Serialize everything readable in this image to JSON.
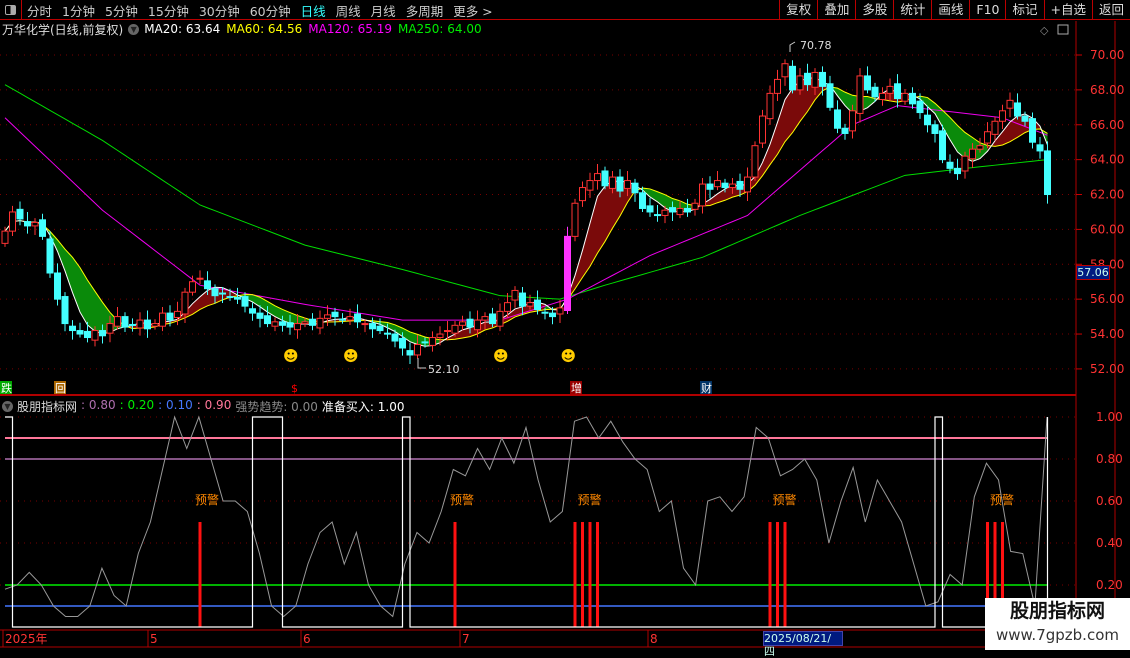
{
  "toolbar": {
    "periods": [
      "分时",
      "1分钟",
      "5分钟",
      "15分钟",
      "30分钟",
      "60分钟",
      "日线",
      "周线",
      "月线",
      "多周期",
      "更多 >"
    ],
    "active": "日线",
    "tools": [
      "复权",
      "叠加",
      "多股",
      "统计",
      "画线",
      "F10",
      "标记",
      "+自选",
      "返回"
    ]
  },
  "info": {
    "title": "万华化学(日线,前复权)",
    "ma": [
      {
        "label": "MA20: 63.64",
        "color": "#ffffff"
      },
      {
        "label": "MA60: 64.56",
        "color": "#ffff00"
      },
      {
        "label": "MA120: 65.19",
        "color": "#ff00ff"
      },
      {
        "label": "MA250: 64.00",
        "color": "#00ee00"
      }
    ]
  },
  "price_axis": {
    "ticks": [
      "70.00",
      "68.00",
      "66.00",
      "64.00",
      "62.00",
      "60.00",
      "58.00",
      "56.00",
      "54.00",
      "52.00"
    ],
    "current": "57.06"
  },
  "annotations": {
    "high": "70.78",
    "low": "52.10"
  },
  "signals": [
    "跌",
    "回",
    "$",
    "增",
    "财"
  ],
  "indicator": {
    "name": "股朋指标网",
    "values": [
      {
        "label": ": 0.80",
        "color": "#b070b0"
      },
      {
        "label": ": 0.20",
        "color": "#00ee00"
      },
      {
        "label": ": 0.10",
        "color": "#4477ff"
      },
      {
        "label": ": 0.90",
        "color": "#ff7799"
      },
      {
        "label": "强势趋势: 0.00",
        "color": "#888888"
      },
      {
        "label": "准备买入: 1.00",
        "color": "#ffffff"
      }
    ],
    "ticks": [
      "1.00",
      "0.80",
      "0.60",
      "0.40",
      "0.20"
    ],
    "warning_label": "预警"
  },
  "time_axis": {
    "labels": [
      "2025年",
      "5",
      "6",
      "7",
      "8"
    ],
    "cursor": "2025/08/21/四"
  },
  "logo": {
    "line1": "股朋指标网",
    "line2": "www.7gpzb.com"
  },
  "chart_data": {
    "type": "candlestick",
    "closes": [
      59.9,
      61,
      60.6,
      60.2,
      60.4,
      59.6,
      57.5,
      56,
      54.6,
      54.2,
      54,
      53.8,
      54.2,
      53.9,
      54.6,
      55,
      54.4,
      54.5,
      54.8,
      54.3,
      54.6,
      55.2,
      54.8,
      55.3,
      56.4,
      57,
      57.2,
      56.6,
      56.2,
      56.3,
      56.1,
      56,
      55.6,
      55.2,
      54.9,
      54.6,
      54.7,
      54.5,
      54.4,
      54.6,
      54.7,
      54.5,
      54.9,
      55.1,
      55,
      54.8,
      55,
      54.7,
      54.6,
      54.3,
      54.2,
      54,
      53.6,
      53.2,
      52.8,
      53.4,
      53.5,
      53.8,
      54,
      54.2,
      54.5,
      54.7,
      54.4,
      54.8,
      55,
      54.6,
      55.3,
      55.8,
      56.5,
      55.6,
      55.8,
      55.4,
      55.2,
      55,
      55.5,
      59.6,
      61.5,
      62.4,
      62.8,
      63.2,
      62.5,
      63,
      62.2,
      62.8,
      62.1,
      61.2,
      61,
      60.8,
      61.1,
      61,
      61.2,
      61,
      61.5,
      62.6,
      62.3,
      62.8,
      62.4,
      62.6,
      62.3,
      63,
      64.8,
      66.5,
      67.8,
      68.6,
      69.5,
      68,
      68.8,
      68.3,
      69,
      68.2,
      67,
      65.8,
      65.5,
      66.8,
      68.8,
      68,
      67.6,
      67.8,
      68.2,
      67.5,
      67.8,
      67.2,
      66.7,
      66,
      65.5,
      64,
      63.5,
      63.2,
      64.2,
      64.6,
      64.8,
      65.6,
      66.2,
      66.8,
      67.4,
      66.5,
      66.2,
      65,
      64.5,
      62
    ],
    "ma250": [
      [
        0,
        68.3
      ],
      [
        13,
        65.1
      ],
      [
        26,
        61.4
      ],
      [
        40,
        59.1
      ],
      [
        53,
        57.7
      ],
      [
        66,
        56.2
      ],
      [
        74,
        56
      ],
      [
        80,
        56.8
      ],
      [
        93,
        58.4
      ],
      [
        106,
        60.8
      ],
      [
        120,
        63.1
      ],
      [
        128,
        63.5
      ],
      [
        139,
        64
      ]
    ],
    "ma120": [
      [
        0,
        66.4
      ],
      [
        13,
        61.1
      ],
      [
        26,
        56.8
      ],
      [
        40,
        55.7
      ],
      [
        53,
        54.8
      ],
      [
        66,
        54.8
      ],
      [
        75,
        56
      ],
      [
        86,
        58.5
      ],
      [
        99,
        60.8
      ],
      [
        113,
        66
      ],
      [
        119,
        67.1
      ],
      [
        133,
        66.4
      ],
      [
        139,
        65.4
      ]
    ],
    "ylim": [
      51.5,
      71
    ],
    "oscillator": [
      0.18,
      0.2,
      0.26,
      0.2,
      0.1,
      0.05,
      0.05,
      0.1,
      0.28,
      0.15,
      0.1,
      0.35,
      0.5,
      0.75,
      1.0,
      0.85,
      1.0,
      0.8,
      0.6,
      0.6,
      0.55,
      0.35,
      0.1,
      0.05,
      0.1,
      0.3,
      0.45,
      0.5,
      0.3,
      0.45,
      0.2,
      0.1,
      0.05,
      0.3,
      0.45,
      0.4,
      0.55,
      0.75,
      0.72,
      0.85,
      0.75,
      0.9,
      0.78,
      0.95,
      0.7,
      0.5,
      0.55,
      0.98,
      1.0,
      0.9,
      0.98,
      0.88,
      0.8,
      0.75,
      0.55,
      0.6,
      0.28,
      0.2,
      0.6,
      0.62,
      0.55,
      0.62,
      0.95,
      0.9,
      0.72,
      0.75,
      0.8,
      0.7,
      0.4,
      0.6,
      0.76,
      0.5,
      0.7,
      0.6,
      0.5,
      0.3,
      0.1,
      0.12,
      0.25,
      0.2,
      0.62,
      0.78,
      0.7,
      0.36,
      0.35,
      0.1,
      1.0
    ],
    "buy_ready_intervals": [
      [
        0,
        0
      ],
      [
        33,
        36
      ],
      [
        53,
        53
      ],
      [
        124,
        124
      ],
      [
        139,
        139
      ]
    ],
    "warning_candles": [
      26,
      60,
      76,
      77,
      78,
      79,
      102,
      103,
      104,
      131,
      132,
      133
    ],
    "levels": [
      {
        "value": 0.9,
        "color": "#ff7799"
      },
      {
        "value": 0.8,
        "color": "#b070b0"
      },
      {
        "value": 0.2,
        "color": "#00ee00"
      },
      {
        "value": 0.1,
        "color": "#4477ff"
      }
    ],
    "smiley_candles": [
      38,
      46,
      66,
      75
    ]
  },
  "colors": {
    "up": "#ff3333",
    "down": "#44ffff",
    "grid": "#aa0000"
  }
}
